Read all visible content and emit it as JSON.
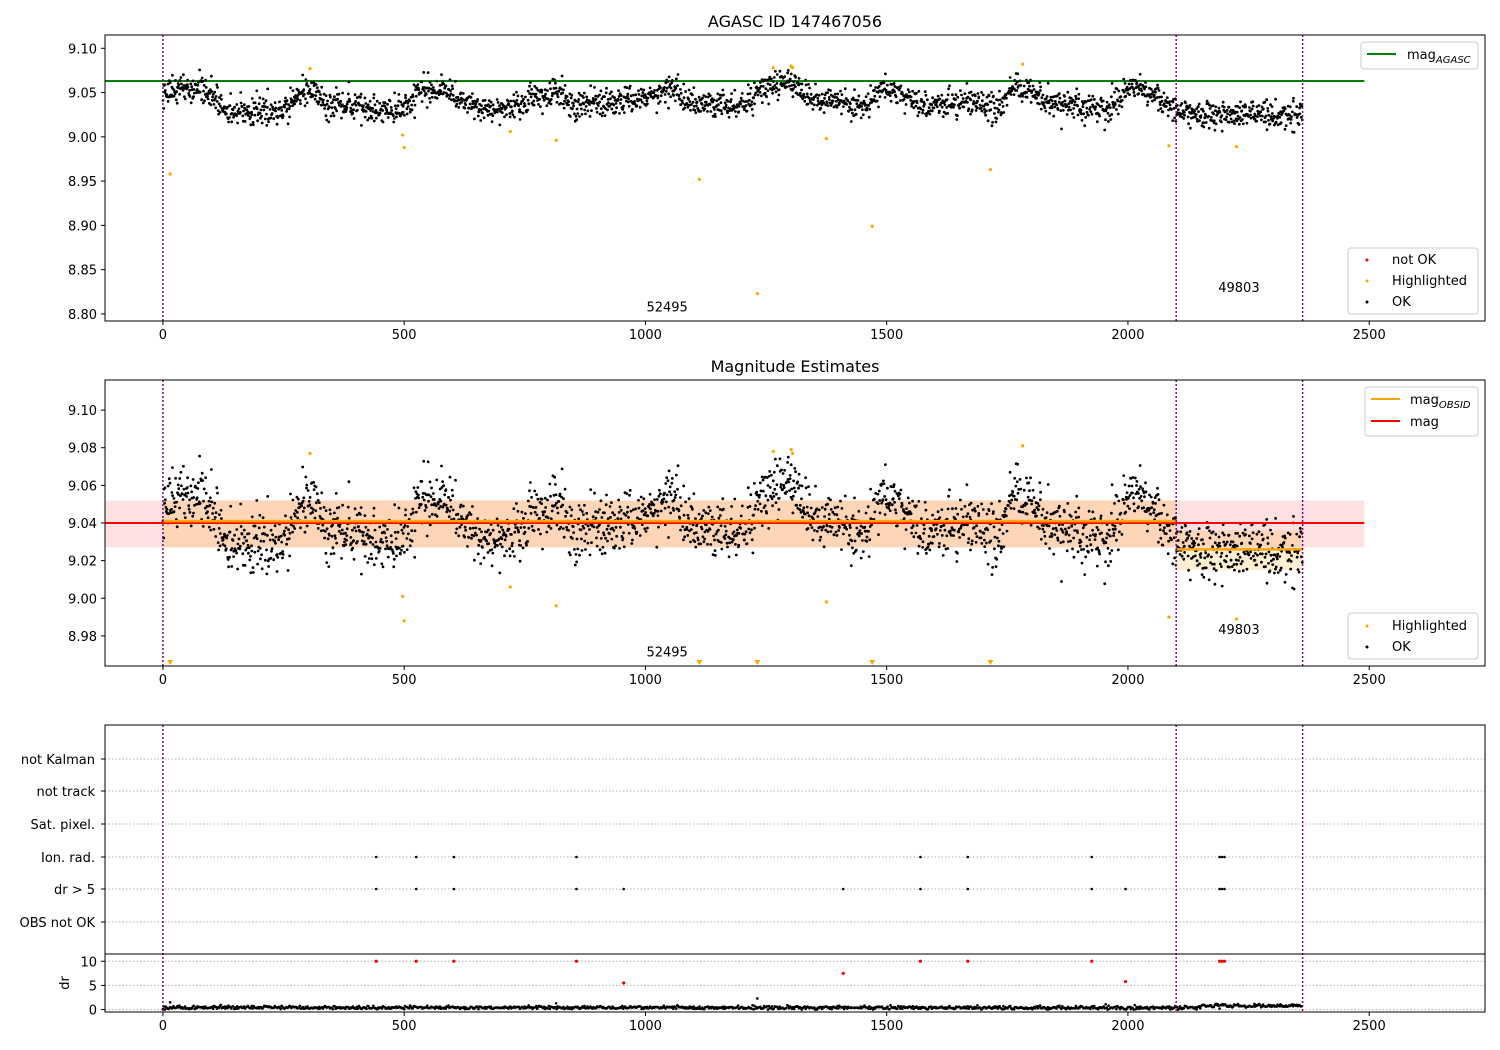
{
  "chart_data": [
    {
      "type": "scatter",
      "title": "AGASC ID 147467056",
      "xlim": [
        -120,
        2740
      ],
      "ylim": [
        8.792,
        9.115
      ],
      "x_ticks": [
        0,
        500,
        1000,
        1500,
        2000,
        2500
      ],
      "y_ticks": [
        8.8,
        8.85,
        8.9,
        8.95,
        9.0,
        9.05,
        9.1
      ],
      "mag_agasc": 9.063,
      "obsid_boundaries": [
        0,
        2100,
        2362
      ],
      "obsid_labels": [
        {
          "text": "52495",
          "x": 1045,
          "y": 8.803
        },
        {
          "text": "49803",
          "x": 2230,
          "y": 8.825
        }
      ],
      "legend_lines": [
        "mag_{AGASC}"
      ],
      "legend_points": [
        "not OK",
        "Highlighted",
        "OK"
      ],
      "highlighted": [
        {
          "x": 15,
          "y": 8.958
        },
        {
          "x": 305,
          "y": 9.077
        },
        {
          "x": 497,
          "y": 9.002
        },
        {
          "x": 500,
          "y": 8.988
        },
        {
          "x": 720,
          "y": 9.006
        },
        {
          "x": 815,
          "y": 8.996
        },
        {
          "x": 1112,
          "y": 8.952
        },
        {
          "x": 1232,
          "y": 8.823
        },
        {
          "x": 1265,
          "y": 9.078
        },
        {
          "x": 1302,
          "y": 9.08
        },
        {
          "x": 1305,
          "y": 9.078
        },
        {
          "x": 1375,
          "y": 8.998
        },
        {
          "x": 1470,
          "y": 8.899
        },
        {
          "x": 1715,
          "y": 8.963
        },
        {
          "x": 1782,
          "y": 9.082
        },
        {
          "x": 2085,
          "y": 8.99
        },
        {
          "x": 2225,
          "y": 8.989
        }
      ],
      "ok_trend": [
        [
          0,
          9.048
        ],
        [
          40,
          9.058
        ],
        [
          100,
          9.05
        ],
        [
          130,
          9.03
        ],
        [
          200,
          9.03
        ],
        [
          250,
          9.03
        ],
        [
          280,
          9.05
        ],
        [
          310,
          9.052
        ],
        [
          340,
          9.035
        ],
        [
          400,
          9.035
        ],
        [
          450,
          9.028
        ],
        [
          510,
          9.035
        ],
        [
          530,
          9.055
        ],
        [
          580,
          9.052
        ],
        [
          610,
          9.04
        ],
        [
          700,
          9.028
        ],
        [
          760,
          9.04
        ],
        [
          820,
          9.052
        ],
        [
          850,
          9.035
        ],
        [
          950,
          9.04
        ],
        [
          1000,
          9.045
        ],
        [
          1050,
          9.055
        ],
        [
          1100,
          9.04
        ],
        [
          1200,
          9.035
        ],
        [
          1240,
          9.055
        ],
        [
          1300,
          9.062
        ],
        [
          1340,
          9.045
        ],
        [
          1420,
          9.038
        ],
        [
          1460,
          9.035
        ],
        [
          1490,
          9.055
        ],
        [
          1520,
          9.05
        ],
        [
          1580,
          9.035
        ],
        [
          1680,
          9.04
        ],
        [
          1730,
          9.032
        ],
        [
          1760,
          9.055
        ],
        [
          1800,
          9.052
        ],
        [
          1830,
          9.04
        ],
        [
          1900,
          9.035
        ],
        [
          1960,
          9.03
        ],
        [
          2000,
          9.055
        ],
        [
          2060,
          9.045
        ],
        [
          2100,
          9.03
        ],
        [
          2150,
          9.025
        ],
        [
          2362,
          9.025
        ]
      ]
    },
    {
      "type": "scatter",
      "title": "Magnitude Estimates",
      "xlim": [
        -120,
        2740
      ],
      "ylim": [
        8.964,
        9.116
      ],
      "x_ticks": [
        0,
        500,
        1000,
        1500,
        2000,
        2500
      ],
      "y_ticks": [
        8.98,
        9.0,
        9.02,
        9.04,
        9.06,
        9.08,
        9.1
      ],
      "mag": 9.04,
      "mag_band": [
        9.027,
        9.052
      ],
      "mag_band_xrange": [
        -120,
        2490
      ],
      "mag_obsid": [
        {
          "x0": 0,
          "x1": 2100,
          "value": 9.041,
          "band": [
            9.027,
            9.052
          ]
        },
        {
          "x0": 2100,
          "x1": 2362,
          "value": 9.026,
          "band": [
            9.015,
            9.036
          ]
        }
      ],
      "obsid_boundaries": [
        0,
        2100,
        2362
      ],
      "obsid_labels": [
        {
          "text": "52495",
          "x": 1045,
          "y": 8.969
        },
        {
          "text": "49803",
          "x": 2230,
          "y": 8.981
        }
      ],
      "legend_lines": [
        "mag_{OBSID}",
        "mag"
      ],
      "legend_points": [
        "Highlighted",
        "OK"
      ],
      "highlighted": [
        {
          "x": 305,
          "y": 9.077
        },
        {
          "x": 497,
          "y": 9.001
        },
        {
          "x": 500,
          "y": 8.988
        },
        {
          "x": 720,
          "y": 9.006
        },
        {
          "x": 815,
          "y": 8.996
        },
        {
          "x": 1265,
          "y": 9.078
        },
        {
          "x": 1302,
          "y": 9.079
        },
        {
          "x": 1305,
          "y": 9.077
        },
        {
          "x": 1375,
          "y": 8.998
        },
        {
          "x": 1782,
          "y": 9.081
        },
        {
          "x": 2085,
          "y": 8.99
        },
        {
          "x": 2225,
          "y": 8.989
        }
      ],
      "below_range_markers": [
        15,
        1112,
        1232,
        1470,
        1715
      ]
    },
    {
      "type": "scatter",
      "xlim": [
        -120,
        2740
      ],
      "x_ticks": [
        0,
        500,
        1000,
        1500,
        2000,
        2500
      ],
      "flag_categories": [
        "not Kalman",
        "not track",
        "Sat. pixel.",
        "Ion. rad.",
        "dr > 5",
        "OBS not OK"
      ],
      "obsid_boundaries": [
        0,
        2100,
        2362
      ],
      "flags": {
        "Ion. rad.": [
          442,
          525,
          603,
          857,
          1570,
          1668,
          1925,
          2190,
          2195,
          2200
        ],
        "dr > 5": [
          442,
          525,
          603,
          857,
          955,
          1410,
          1570,
          1668,
          1925,
          1995,
          2190,
          2195,
          2200
        ]
      },
      "dr": {
        "ylabel": "dr",
        "ylim": [
          -0.5,
          11.5
        ],
        "y_ticks": [
          0,
          5,
          10
        ],
        "not_ok_points": [
          {
            "x": 442,
            "y": 10
          },
          {
            "x": 525,
            "y": 10
          },
          {
            "x": 603,
            "y": 10
          },
          {
            "x": 857,
            "y": 10
          },
          {
            "x": 955,
            "y": 5.5
          },
          {
            "x": 1410,
            "y": 7.5
          },
          {
            "x": 1570,
            "y": 10
          },
          {
            "x": 1668,
            "y": 10
          },
          {
            "x": 1925,
            "y": 10
          },
          {
            "x": 1995,
            "y": 5.8
          },
          {
            "x": 2190,
            "y": 10
          },
          {
            "x": 2195,
            "y": 10
          },
          {
            "x": 2200,
            "y": 10
          }
        ],
        "ok_level": 0.4,
        "outliers": [
          {
            "x": 15,
            "y": 1.5
          },
          {
            "x": 815,
            "y": 1.3
          },
          {
            "x": 1232,
            "y": 2.3
          }
        ]
      }
    }
  ]
}
